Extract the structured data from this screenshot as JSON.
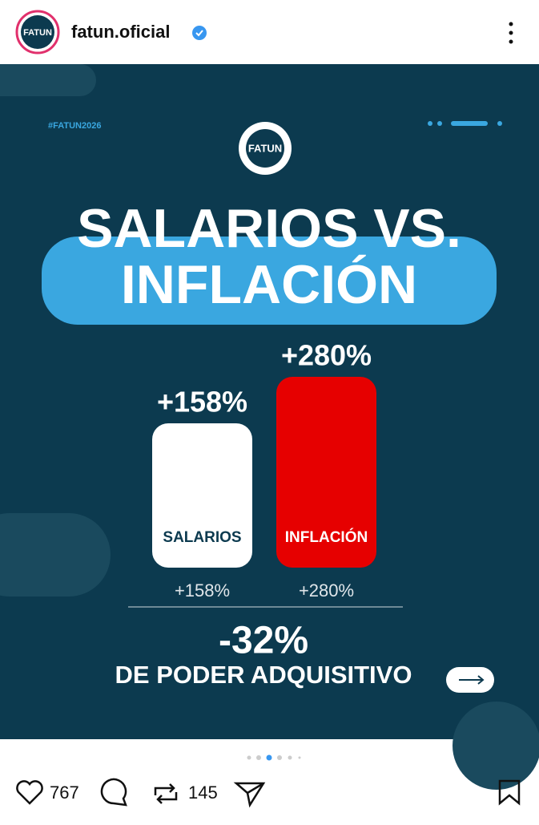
{
  "header": {
    "username": "fatun.oficial"
  },
  "post": {
    "hashtag": "#FATUN2026",
    "logo_text": "FATUN",
    "title": [
      "SALARIOS VS.",
      "INFLACIÓN"
    ],
    "chart_data": {
      "type": "bar",
      "categories": [
        "SALARIOS",
        "INFLACIÓN"
      ],
      "values": [
        158,
        280
      ],
      "value_labels": [
        "+158%",
        "+280%"
      ],
      "colors": [
        "#ffffff",
        "#e60000"
      ],
      "label_colors": [
        "#0c3a4f",
        "#ffffff"
      ]
    },
    "result": "-32%",
    "result_text": "DE PODER ADQUISITIVO"
  },
  "footer": {
    "likes": "767",
    "reposts": "145"
  }
}
